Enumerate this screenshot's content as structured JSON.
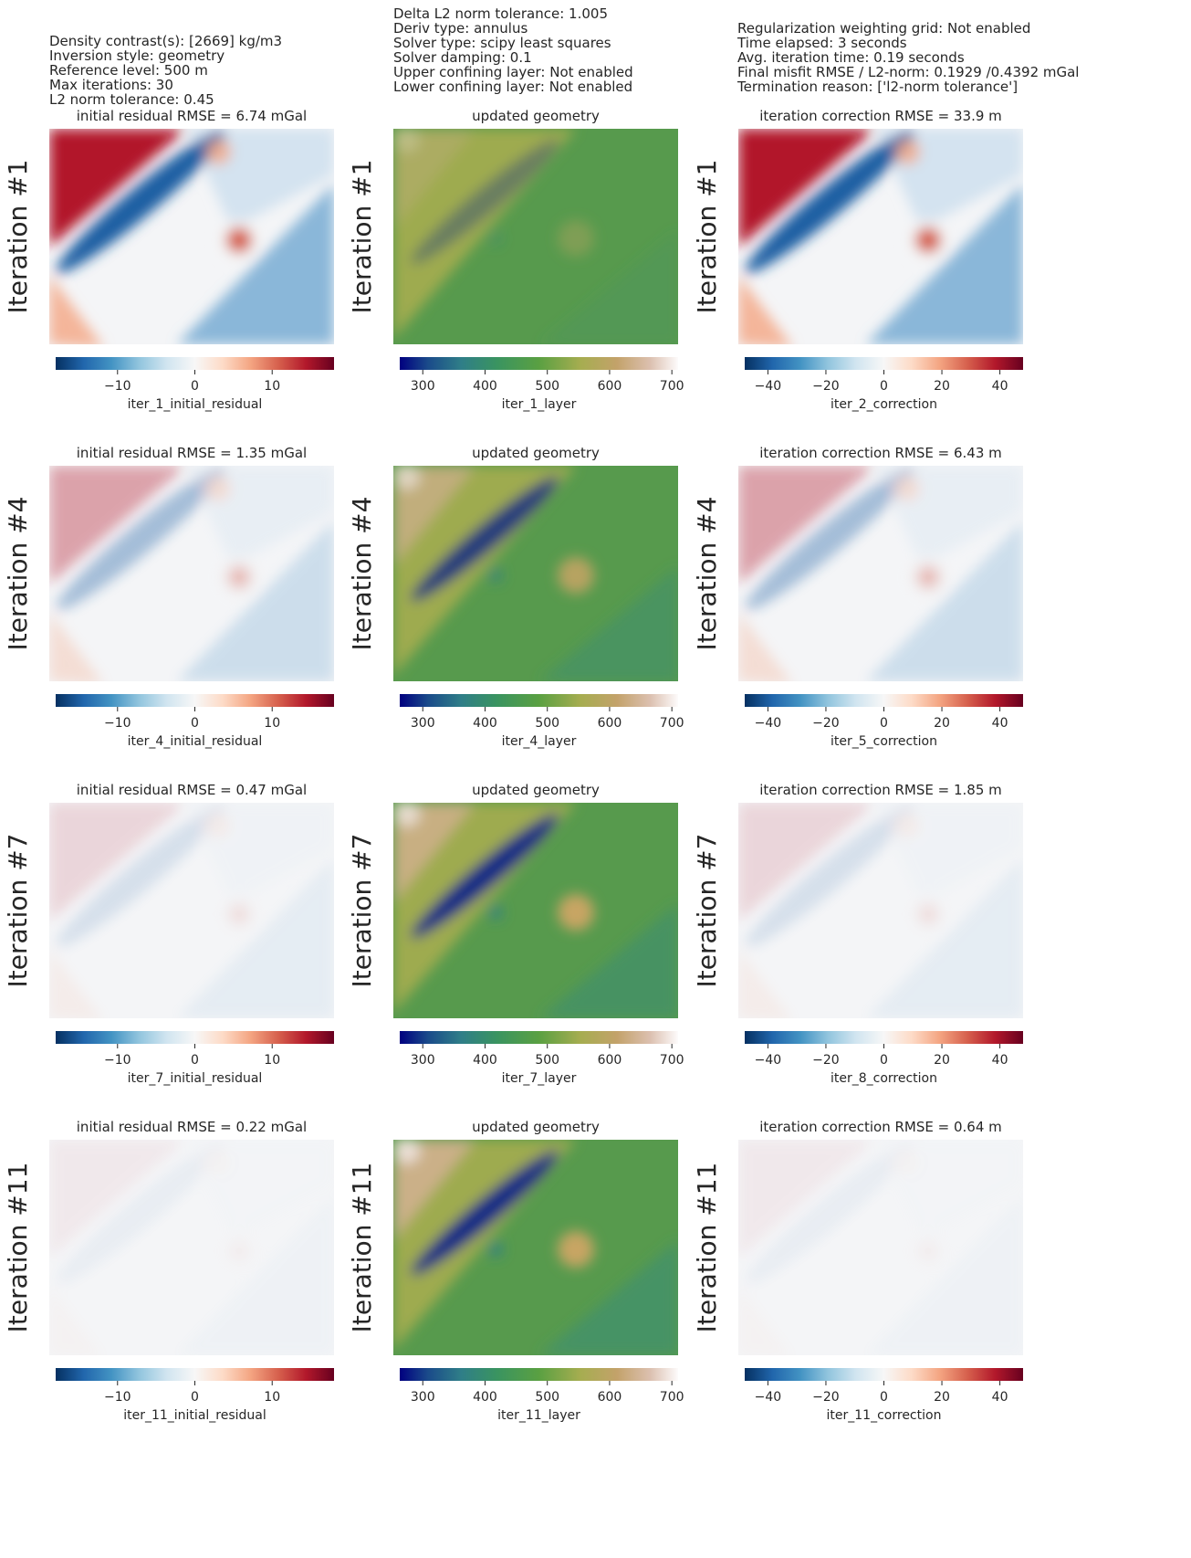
{
  "header": {
    "columns": [
      [
        "Density contrast(s): [2669] kg/m3",
        "Inversion style: geometry",
        "Reference level: 500 m",
        "Max iterations: 30",
        "L2 norm tolerance: 0.45"
      ],
      [
        "Delta L2 norm tolerance: 1.005",
        "Deriv type: annulus",
        "Solver type: scipy least squares",
        "Solver damping: 0.1",
        "Upper confining layer: Not enabled",
        "Lower confining layer: Not enabled"
      ],
      [
        "Regularization weighting grid: Not enabled",
        "Time elapsed: 3 seconds",
        "Avg. iteration time: 0.19 seconds",
        "Final misfit RMSE / L2-norm: 0.1929 /0.4392 mGal",
        "Termination reason: ['l2-norm tolerance']"
      ]
    ]
  },
  "chart_data": [
    {
      "type": "heatmap",
      "row_label": "Iteration #1",
      "title": "initial residual RMSE = 6.74 mGal",
      "colorbar_label": "iter_1_initial_residual",
      "colormap": "RdBu_r",
      "clim": [
        -18,
        18
      ],
      "ticks": [
        {
          "value": -10,
          "label": "−10"
        },
        0,
        10
      ]
    },
    {
      "type": "heatmap",
      "row_label": "Iteration #1",
      "title": "updated geometry",
      "colorbar_label": "iter_1_layer",
      "colormap": "gist_earth",
      "clim": [
        263,
        710
      ],
      "ticks": [
        300,
        400,
        500,
        600,
        700
      ]
    },
    {
      "type": "heatmap",
      "row_label": "Iteration #1",
      "title": "iteration correction RMSE = 33.9 m",
      "colorbar_label": "iter_2_correction",
      "colormap": "RdBu_r",
      "clim": [
        -48,
        48
      ],
      "ticks": [
        {
          "value": -40,
          "label": "−40"
        },
        {
          "value": -20,
          "label": "−20"
        },
        0,
        20,
        40
      ]
    },
    {
      "type": "heatmap",
      "row_label": "Iteration #4",
      "title": "initial residual RMSE = 1.35 mGal",
      "colorbar_label": "iter_4_initial_residual",
      "colormap": "RdBu_r",
      "clim": [
        -18,
        18
      ],
      "ticks": [
        {
          "value": -10,
          "label": "−10"
        },
        0,
        10
      ]
    },
    {
      "type": "heatmap",
      "row_label": "Iteration #4",
      "title": "updated geometry",
      "colorbar_label": "iter_4_layer",
      "colormap": "gist_earth",
      "clim": [
        263,
        710
      ],
      "ticks": [
        300,
        400,
        500,
        600,
        700
      ]
    },
    {
      "type": "heatmap",
      "row_label": "Iteration #4",
      "title": "iteration correction RMSE = 6.43 m",
      "colorbar_label": "iter_5_correction",
      "colormap": "RdBu_r",
      "clim": [
        -48,
        48
      ],
      "ticks": [
        {
          "value": -40,
          "label": "−40"
        },
        {
          "value": -20,
          "label": "−20"
        },
        0,
        20,
        40
      ]
    },
    {
      "type": "heatmap",
      "row_label": "Iteration #7",
      "title": "initial residual RMSE = 0.47 mGal",
      "colorbar_label": "iter_7_initial_residual",
      "colormap": "RdBu_r",
      "clim": [
        -18,
        18
      ],
      "ticks": [
        {
          "value": -10,
          "label": "−10"
        },
        0,
        10
      ]
    },
    {
      "type": "heatmap",
      "row_label": "Iteration #7",
      "title": "updated geometry",
      "colorbar_label": "iter_7_layer",
      "colormap": "gist_earth",
      "clim": [
        263,
        710
      ],
      "ticks": [
        300,
        400,
        500,
        600,
        700
      ]
    },
    {
      "type": "heatmap",
      "row_label": "Iteration #7",
      "title": "iteration correction RMSE = 1.85 m",
      "colorbar_label": "iter_8_correction",
      "colormap": "RdBu_r",
      "clim": [
        -48,
        48
      ],
      "ticks": [
        {
          "value": -40,
          "label": "−40"
        },
        {
          "value": -20,
          "label": "−20"
        },
        0,
        20,
        40
      ]
    },
    {
      "type": "heatmap",
      "row_label": "Iteration #11",
      "title": "initial residual RMSE = 0.22 mGal",
      "colorbar_label": "iter_11_initial_residual",
      "colormap": "RdBu_r",
      "clim": [
        -18,
        18
      ],
      "ticks": [
        {
          "value": -10,
          "label": "−10"
        },
        0,
        10
      ]
    },
    {
      "type": "heatmap",
      "row_label": "Iteration #11",
      "title": "updated geometry",
      "colorbar_label": "iter_11_layer",
      "colormap": "gist_earth",
      "clim": [
        263,
        710
      ],
      "ticks": [
        300,
        400,
        500,
        600,
        700
      ]
    },
    {
      "type": "heatmap",
      "row_label": "Iteration #11",
      "title": "iteration correction RMSE = 0.64 m",
      "colorbar_label": "iter_11_correction",
      "colormap": "RdBu_r",
      "clim": [
        -48,
        48
      ],
      "ticks": [
        {
          "value": -40,
          "label": "−40"
        },
        {
          "value": -20,
          "label": "−20"
        },
        0,
        20,
        40
      ]
    }
  ]
}
